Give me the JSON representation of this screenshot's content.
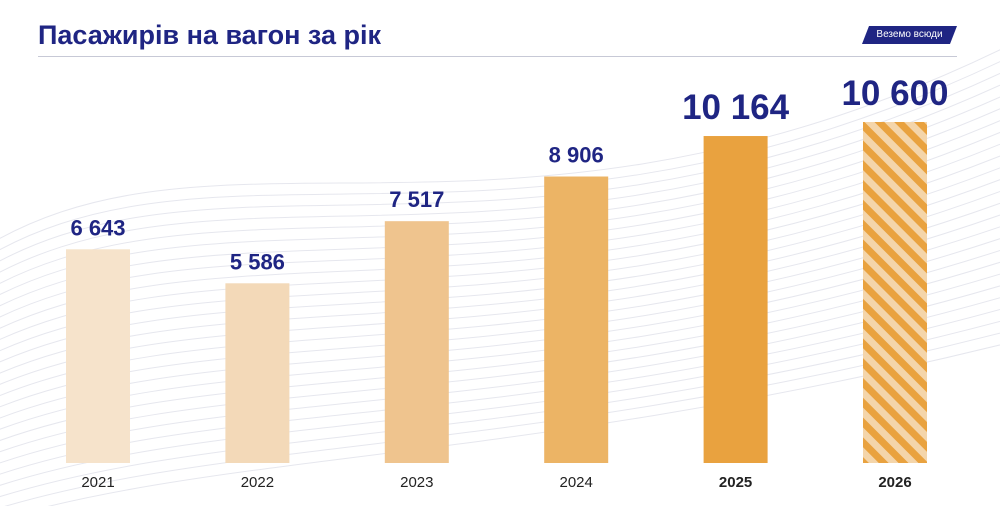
{
  "header": {
    "title": "Пасажирів на вагон за рік",
    "tag": "Веземо всюди"
  },
  "colors": {
    "title": "#1f2583",
    "tag_bg": "#1f2583",
    "value_label": "#1f2583",
    "bars": [
      "#f6e3cb",
      "#f3d9b8",
      "#efc48e",
      "#ecb465",
      "#e9a23f",
      "#e9a23f"
    ],
    "hatch_light": "#f4d5aa"
  },
  "chart_data": {
    "type": "bar",
    "title": "Пасажирів на вагон за рік",
    "xlabel": "",
    "ylabel": "",
    "categories": [
      "2021",
      "2022",
      "2023",
      "2024",
      "2025",
      "2026"
    ],
    "values": [
      6643,
      5586,
      7517,
      8906,
      10164,
      10600
    ],
    "value_labels": [
      "6 643",
      "5 586",
      "7 517",
      "8 906",
      "10 164",
      "10 600"
    ],
    "emphasized": [
      false,
      false,
      false,
      false,
      true,
      true
    ],
    "forecast": [
      false,
      false,
      false,
      false,
      false,
      true
    ],
    "ylim": [
      0,
      10600
    ],
    "grid": false,
    "legend": "none"
  }
}
